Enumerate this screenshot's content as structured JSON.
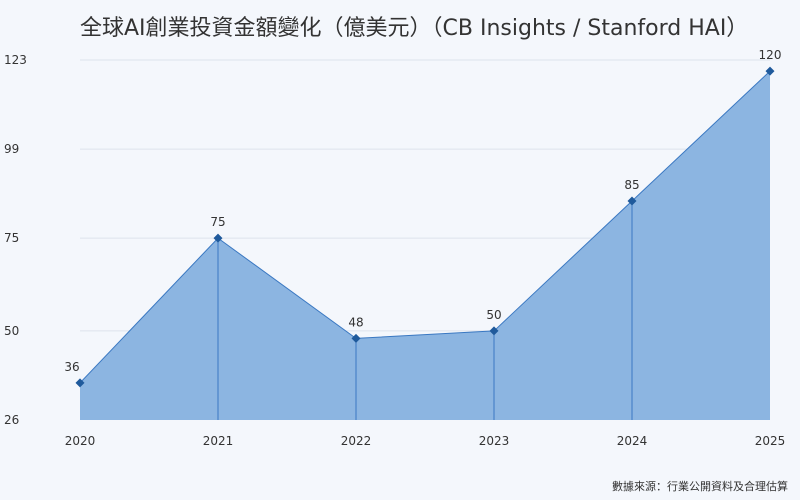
{
  "colors": {
    "background": "#f4f7fc",
    "area_fill": "#8cb5e1",
    "line": "#3a78c2",
    "marker": "#1f5a9c",
    "grid": "#dde3ec",
    "text": "#333333"
  },
  "chart_data": {
    "type": "area",
    "title": "全球AI創業投資金額變化（億美元）（CB Insights / Stanford HAI）",
    "xlabel": "",
    "ylabel": "",
    "categories": [
      "2020",
      "2021",
      "2022",
      "2023",
      "2024",
      "2025"
    ],
    "series": [
      {
        "values": [
          36,
          75,
          48,
          50,
          85,
          120
        ]
      }
    ],
    "ylim": [
      26,
      123
    ],
    "yticks": [
      26,
      50,
      75,
      99,
      123
    ],
    "grid": "horizontal",
    "legend": "none",
    "source": "數據來源：行業公開資料及合理估算"
  }
}
